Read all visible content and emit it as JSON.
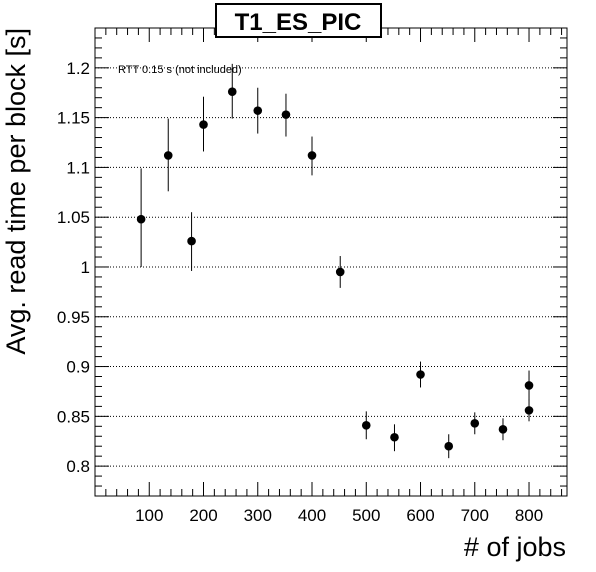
{
  "chart_data": {
    "type": "scatter",
    "title": "T1_ES_PIC",
    "xlabel": "# of jobs",
    "ylabel": "Avg. read time per block [s]",
    "annotation": "RTT 0.15 s (not included)",
    "xlim": [
      0,
      870
    ],
    "ylim": [
      0.77,
      1.24
    ],
    "x_ticks": [
      100,
      200,
      300,
      400,
      500,
      600,
      700,
      800
    ],
    "x_tick_labels": [
      "100",
      "200",
      "300",
      "400",
      "500",
      "600",
      "700",
      "800"
    ],
    "y_ticks": [
      0.8,
      0.85,
      0.9,
      0.95,
      1.0,
      1.05,
      1.1,
      1.15,
      1.2
    ],
    "y_tick_labels": [
      "0.8",
      "0.85",
      "0.9",
      "0.95",
      "1",
      "1.05",
      "1.1",
      "1.15",
      "1.2"
    ],
    "grid": true,
    "series": [
      {
        "points": [
          {
            "x": 85,
            "y": 1.048,
            "err_low": 1.0,
            "err_high": 1.099
          },
          {
            "x": 135,
            "y": 1.112,
            "err_low": 1.076,
            "err_high": 1.149
          },
          {
            "x": 178,
            "y": 1.026,
            "err_low": 0.996,
            "err_high": 1.055
          },
          {
            "x": 200,
            "y": 1.143,
            "err_low": 1.116,
            "err_high": 1.171
          },
          {
            "x": 253,
            "y": 1.176,
            "err_low": 1.149,
            "err_high": 1.204
          },
          {
            "x": 300,
            "y": 1.157,
            "err_low": 1.134,
            "err_high": 1.18
          },
          {
            "x": 352,
            "y": 1.153,
            "err_low": 1.131,
            "err_high": 1.174
          },
          {
            "x": 400,
            "y": 1.112,
            "err_low": 1.092,
            "err_high": 1.131
          },
          {
            "x": 452,
            "y": 0.995,
            "err_low": 0.979,
            "err_high": 1.011
          },
          {
            "x": 500,
            "y": 0.841,
            "err_low": 0.827,
            "err_high": 0.855
          },
          {
            "x": 552,
            "y": 0.829,
            "err_low": 0.815,
            "err_high": 0.842
          },
          {
            "x": 600,
            "y": 0.892,
            "err_low": 0.879,
            "err_high": 0.905
          },
          {
            "x": 652,
            "y": 0.82,
            "err_low": 0.808,
            "err_high": 0.832
          },
          {
            "x": 700,
            "y": 0.843,
            "err_low": 0.832,
            "err_high": 0.854
          },
          {
            "x": 752,
            "y": 0.837,
            "err_low": 0.826,
            "err_high": 0.848
          },
          {
            "x": 800,
            "y": 0.856,
            "err_low": 0.845,
            "err_high": 0.867
          },
          {
            "x": 800,
            "y": 0.881,
            "err_low": 0.866,
            "err_high": 0.896
          }
        ]
      }
    ]
  }
}
